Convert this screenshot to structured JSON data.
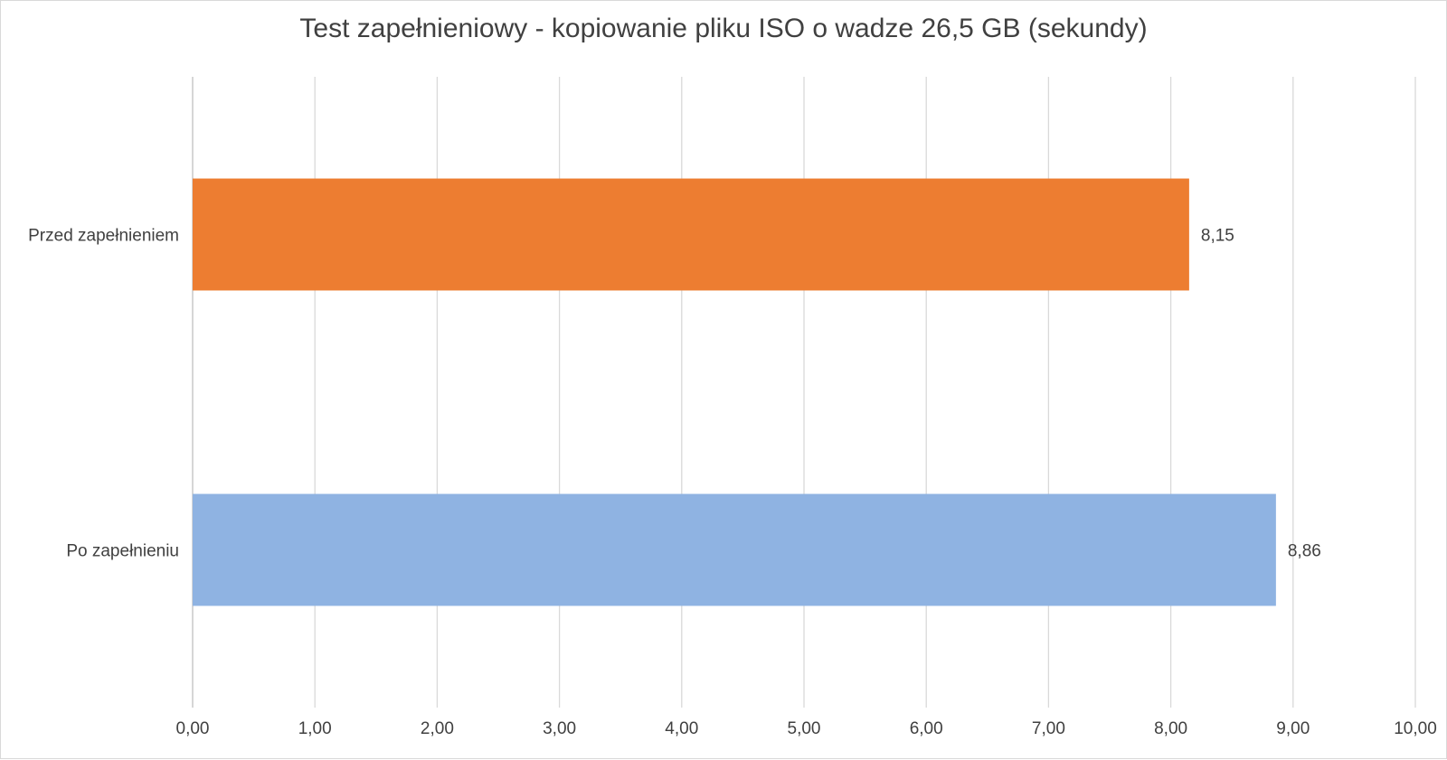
{
  "chart_data": {
    "type": "bar",
    "orientation": "horizontal",
    "title": "Test zapełnieniowy - kopiowanie pliku ISO o wadze 26,5 GB (sekundy)",
    "categories": [
      "Przed zapełnieniem",
      "Po zapełnieniu"
    ],
    "values": [
      8.15,
      8.86
    ],
    "value_labels": [
      "8,15",
      "8,86"
    ],
    "bar_colors": [
      "#ed7d31",
      "#8fb3e2"
    ],
    "xlim": [
      0,
      10
    ],
    "x_ticks": [
      0,
      1,
      2,
      3,
      4,
      5,
      6,
      7,
      8,
      9,
      10
    ],
    "x_tick_labels": [
      "0,00",
      "1,00",
      "2,00",
      "3,00",
      "4,00",
      "5,00",
      "6,00",
      "7,00",
      "8,00",
      "9,00",
      "10,00"
    ],
    "grid": true,
    "legend": "none",
    "xlabel": "",
    "ylabel": ""
  }
}
